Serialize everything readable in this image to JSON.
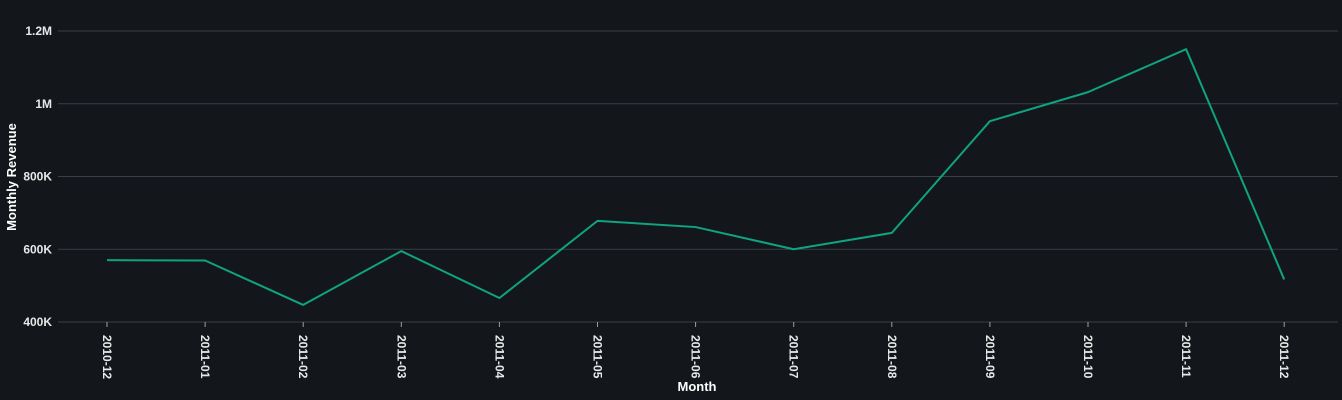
{
  "chart_data": {
    "type": "line",
    "title": "",
    "xlabel": "Month",
    "ylabel": "Monthly Revenue",
    "categories": [
      "2010-12",
      "2011-01",
      "2011-02",
      "2011-03",
      "2011-04",
      "2011-05",
      "2011-06",
      "2011-07",
      "2011-08",
      "2011-09",
      "2011-10",
      "2011-11",
      "2011-12"
    ],
    "series": [
      {
        "values": [
          570000,
          569000,
          447000,
          595000,
          466000,
          678000,
          661000,
          600000,
          645000,
          952000,
          1032000,
          1150000,
          517000
        ],
        "color": "#10a37f"
      }
    ],
    "ylim": [
      400000,
      1200000
    ],
    "yticks": [
      400000,
      600000,
      800000,
      1000000,
      1200000
    ],
    "ytick_labels": [
      "400K",
      "600K",
      "800K",
      "1M",
      "1.2M"
    ],
    "grid": true,
    "legend": "none"
  },
  "colors": {
    "background": "#13171c",
    "grid": "#3a3f45",
    "text": "#e8e8e8",
    "line": "#10a37f"
  }
}
